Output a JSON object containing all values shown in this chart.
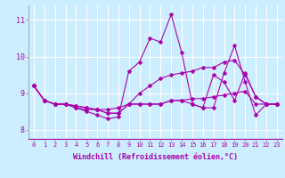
{
  "xlabel": "Windchill (Refroidissement éolien,°C)",
  "ylabel": "",
  "background_color": "#cceeff",
  "grid_color": "#aaddcc",
  "line_color": "#aa00aa",
  "xlim": [
    -0.5,
    23.5
  ],
  "ylim": [
    7.75,
    11.4
  ],
  "xtick_labels": [
    "0",
    "1",
    "2",
    "3",
    "4",
    "5",
    "6",
    "7",
    "8",
    "9",
    "10",
    "11",
    "12",
    "13",
    "14",
    "15",
    "16",
    "17",
    "18",
    "19",
    "20",
    "21",
    "22",
    "23"
  ],
  "ytick_labels": [
    "8",
    "9",
    "10",
    "11"
  ],
  "ytick_values": [
    8,
    9,
    10,
    11
  ],
  "series": [
    [
      9.2,
      8.8,
      8.7,
      8.7,
      8.6,
      8.5,
      8.4,
      8.3,
      8.35,
      9.6,
      9.85,
      10.5,
      10.4,
      11.15,
      10.1,
      8.7,
      8.6,
      9.5,
      9.3,
      8.8,
      9.55,
      8.9,
      8.7,
      8.7
    ],
    [
      9.2,
      8.8,
      8.7,
      8.7,
      8.6,
      8.55,
      8.55,
      8.55,
      8.6,
      8.7,
      8.7,
      8.7,
      8.7,
      8.8,
      8.8,
      8.85,
      8.85,
      8.9,
      8.95,
      9.0,
      9.05,
      8.7,
      8.7,
      8.7
    ],
    [
      9.2,
      8.8,
      8.7,
      8.7,
      8.65,
      8.6,
      8.55,
      8.45,
      8.45,
      8.7,
      9.0,
      9.2,
      9.4,
      9.5,
      9.55,
      9.6,
      9.7,
      9.7,
      9.85,
      9.9,
      9.5,
      8.9,
      8.7,
      8.7
    ],
    [
      9.2,
      8.8,
      8.7,
      8.7,
      8.65,
      8.6,
      8.55,
      8.45,
      8.45,
      8.7,
      8.7,
      8.7,
      8.7,
      8.8,
      8.8,
      8.7,
      8.6,
      8.6,
      9.55,
      10.3,
      9.3,
      8.4,
      8.7,
      8.7
    ]
  ],
  "marker": "D",
  "marker_size": 2.5,
  "linewidth": 0.8,
  "label_fontsize": 5.0,
  "xlabel_fontsize": 6.0
}
